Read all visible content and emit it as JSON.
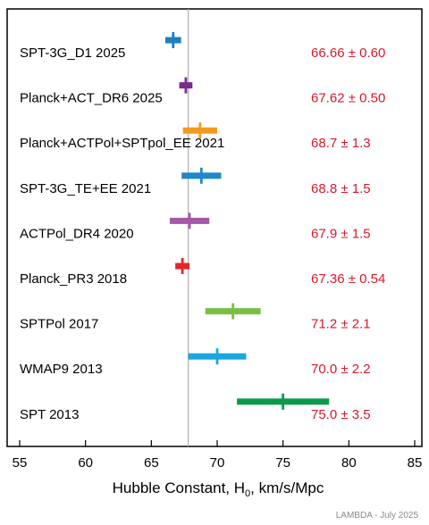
{
  "chart_data": {
    "type": "scatter",
    "orientation": "horizontal-errorbars",
    "xlabel": {
      "main": "Hubble Constant, H",
      "sub": "0",
      "rest": ", km/s/Mpc"
    },
    "xlim": [
      55,
      85
    ],
    "xticks": [
      55,
      60,
      65,
      70,
      75,
      80,
      85
    ],
    "reference_line_x": 67.8,
    "grid": false,
    "series": [
      {
        "label": "SPT-3G_D1 2025",
        "value": 66.66,
        "err": 0.6,
        "text": "66.66 ± 0.60",
        "color": "#1f7fc1"
      },
      {
        "label": "Planck+ACT_DR6 2025",
        "value": 67.62,
        "err": 0.5,
        "text": "67.62 ± 0.50",
        "color": "#7b2a8f"
      },
      {
        "label": "Planck+ACTPol+SPTpol_EE 2021",
        "value": 68.7,
        "err": 1.3,
        "text": "68.7 ± 1.3",
        "color": "#f39a1e"
      },
      {
        "label": "SPT-3G_TE+EE 2021",
        "value": 68.8,
        "err": 1.5,
        "text": "68.8 ± 1.5",
        "color": "#1f88c9"
      },
      {
        "label": "ACTPol_DR4 2020",
        "value": 67.9,
        "err": 1.5,
        "text": "67.9 ± 1.5",
        "color": "#a557a8"
      },
      {
        "label": "Planck_PR3 2018",
        "value": 67.36,
        "err": 0.54,
        "text": "67.36 ± 0.54",
        "color": "#e6242b"
      },
      {
        "label": "SPTPol 2017",
        "value": 71.2,
        "err": 2.1,
        "text": "71.2 ± 2.1",
        "color": "#78bf43"
      },
      {
        "label": "WMAP9 2013",
        "value": 70.0,
        "err": 2.2,
        "text": "70.0 ± 2.2",
        "color": "#1aa6df"
      },
      {
        "label": "SPT 2013",
        "value": 75.0,
        "err": 3.5,
        "text": "75.0 ± 3.5",
        "color": "#0a9a4a"
      }
    ]
  },
  "credit": "LAMBDA - July 2025"
}
